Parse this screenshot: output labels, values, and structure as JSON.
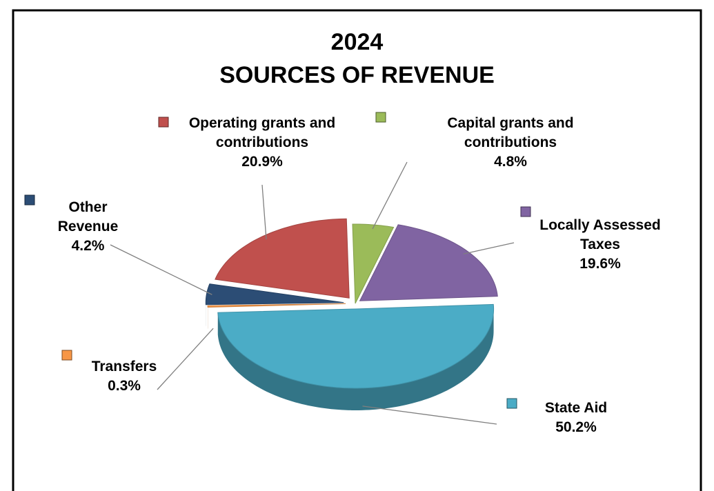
{
  "chart_data": {
    "type": "pie",
    "title": "2024",
    "subtitle": "SOURCES OF REVENUE",
    "categories": [
      "Capital grants and contributions",
      "Locally Assessed Taxes",
      "State Aid",
      "Transfers",
      "Other Revenue",
      "Operating grants and contributions"
    ],
    "values": [
      4.8,
      19.6,
      50.2,
      0.3,
      4.2,
      20.9
    ],
    "value_labels": [
      "4.8%",
      "19.6%",
      "50.2%",
      "0.3%",
      "4.2%",
      "20.9%"
    ],
    "colors": [
      "#9bbb59",
      "#8064a2",
      "#4bacc6",
      "#f79646",
      "#2c4d75",
      "#c0504d"
    ]
  }
}
